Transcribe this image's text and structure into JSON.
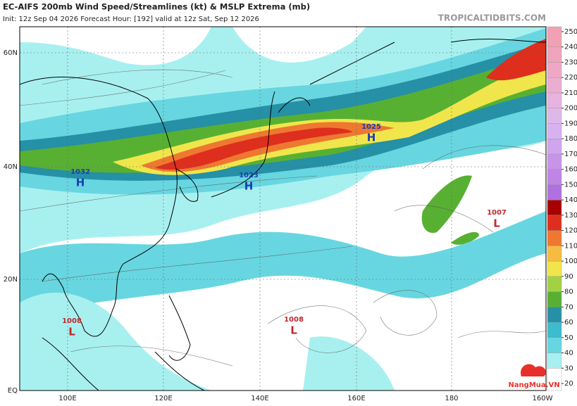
{
  "header": {
    "title": "EC-AIFS 200mb Wind Speed/Streamlines (kt) & MSLP Extrema (mb)",
    "subtitle": "Init: 12z Sep 04 2026   Forecast Hour: [192]   valid at 12z Sat, Sep 12 2026",
    "site": "TROPICALTIDBITS.COM"
  },
  "map": {
    "lat_labels": [
      "60N",
      "40N",
      "20N",
      "EQ"
    ],
    "lon_labels": [
      "100E",
      "120E",
      "140E",
      "160E",
      "180",
      "160W"
    ]
  },
  "extrema": [
    {
      "symbol": "H",
      "value": 1032
    },
    {
      "symbol": "H",
      "value": 1023
    },
    {
      "symbol": "H",
      "value": 1025
    },
    {
      "symbol": "L",
      "value": 1007
    },
    {
      "symbol": "L",
      "value": 1008
    },
    {
      "symbol": "L",
      "value": 1008
    }
  ],
  "colorbar": {
    "ticks": [
      20,
      30,
      40,
      50,
      60,
      70,
      80,
      90,
      100,
      110,
      120,
      130,
      140,
      150,
      160,
      170,
      180,
      190,
      200,
      210,
      220,
      230,
      240,
      250
    ],
    "colors": [
      "#ffffff",
      "#a8f0f0",
      "#68d6e0",
      "#3cbccc",
      "#2590a6",
      "#58b032",
      "#a2d244",
      "#f0e64c",
      "#f6bc40",
      "#ee7830",
      "#de2e1e",
      "#a80000",
      "#b070e0",
      "#c084e6",
      "#c894ea",
      "#d0a4ee",
      "#d8b2f0",
      "#dfb8ea",
      "#e6b4de",
      "#eaaed2",
      "#eea8c6",
      "#f0a4bc",
      "#f2a0b4"
    ]
  },
  "watermark": "NangMua.VN"
}
